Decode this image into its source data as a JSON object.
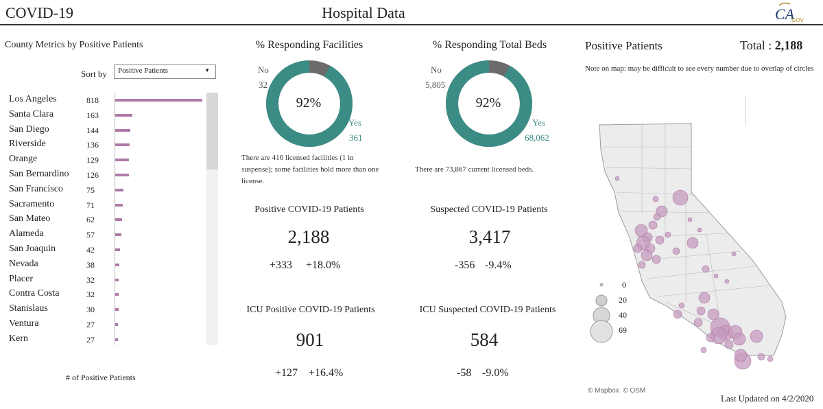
{
  "header": {
    "app_title": "COVID-19",
    "page_title": "Hospital Data",
    "logo_text": "CA",
    "logo_sub": ".GOV"
  },
  "county": {
    "title": "County Metrics by Positive Patients",
    "sort_label": "Sort by",
    "sort_value": "Positive Patients",
    "axis_label": "# of Positive Patients",
    "max_value": 818,
    "rows": [
      {
        "name": "Los Angeles",
        "value": 818
      },
      {
        "name": "Santa Clara",
        "value": 163
      },
      {
        "name": "San Diego",
        "value": 144
      },
      {
        "name": "Riverside",
        "value": 136
      },
      {
        "name": "Orange",
        "value": 129
      },
      {
        "name": "San Bernardino",
        "value": 126
      },
      {
        "name": "San Francisco",
        "value": 75
      },
      {
        "name": "Sacramento",
        "value": 71
      },
      {
        "name": "San Mateo",
        "value": 62
      },
      {
        "name": "Alameda",
        "value": 57
      },
      {
        "name": "San Joaquin",
        "value": 42
      },
      {
        "name": "Nevada",
        "value": 38
      },
      {
        "name": "Placer",
        "value": 32
      },
      {
        "name": "Contra Costa",
        "value": 32
      },
      {
        "name": "Stanislaus",
        "value": 30
      },
      {
        "name": "Ventura",
        "value": 27
      },
      {
        "name": "Kern",
        "value": 27
      }
    ]
  },
  "facilities": {
    "title": "% Responding Facilities",
    "pct": "92%",
    "fraction": 0.92,
    "no_label": "No",
    "no_value": "32",
    "yes_label": "Yes",
    "yes_value": "361",
    "note": "There are 416 licensed facilities (1 in suspense); some facilities hold more than one license."
  },
  "beds": {
    "title": "% Responding Total Beds",
    "pct": "92%",
    "fraction": 0.92,
    "no_label": "No",
    "no_value": "5,805",
    "yes_label": "Yes",
    "yes_value": "68,062",
    "note": "There are 73,867 current licensed beds."
  },
  "positive": {
    "title": "Positive COVID-19 Patients",
    "value": "2,188",
    "change": "+333",
    "change_pct": "+18.0%"
  },
  "suspected": {
    "title": "Suspected COVID-19 Patients",
    "value": "3,417",
    "change": "-356",
    "change_pct": "-9.4%"
  },
  "icu_positive": {
    "title": "ICU Positive COVID-19 Patients",
    "value": "901",
    "change": "+127",
    "change_pct": "+16.4%"
  },
  "icu_suspected": {
    "title": "ICU Suspected COVID-19 Patients",
    "value": "584",
    "change": "-58",
    "change_pct": "-9.0%"
  },
  "map": {
    "title": "Positive Patients",
    "total_label": "Total :",
    "total_value": "2,188",
    "note": "Note on map: may be difficult to see every number due to overlap of circles",
    "legend": [
      "0",
      "20",
      "40",
      "69"
    ],
    "credit_mapbox": "© Mapbox",
    "credit_osm": "© OSM"
  },
  "footer": {
    "updated": "Last Updated on 4/2/2020"
  },
  "colors": {
    "teal": "#3c8c86",
    "gray": "#6b6b6b",
    "bar": "#b07aa8",
    "bubble": "#c79bc0"
  }
}
